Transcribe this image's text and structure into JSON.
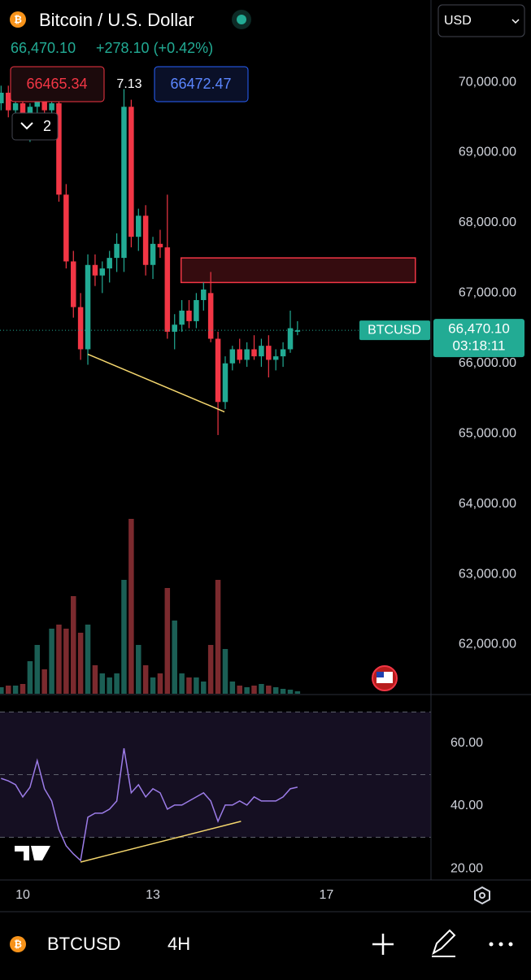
{
  "header": {
    "title": "Bitcoin / U.S. Dollar",
    "price": "66,470.10",
    "change": "+278.10 (+0.42%)",
    "bid": "66465.34",
    "spread": "7.13",
    "ask": "66472.47",
    "indicators_count": "2",
    "currency": "USD"
  },
  "chart_data": {
    "type": "candlestick",
    "symbol_label": "BTCUSD",
    "last_price_label": "66,470.10",
    "countdown": "03:18:11",
    "up_color": "#22ab94",
    "down_color": "#f23645",
    "x": [
      9.5,
      9.667,
      9.833,
      10,
      10.167,
      10.333,
      10.5,
      10.667,
      10.833,
      11,
      11.167,
      11.333,
      11.5,
      11.667,
      11.833,
      12,
      12.167,
      12.333,
      12.5,
      12.667,
      12.833,
      13,
      13.167,
      13.333,
      13.5,
      13.667,
      13.833,
      14,
      14.167,
      14.333,
      14.5,
      14.667,
      14.833,
      15,
      15.167,
      15.333,
      15.5,
      15.667,
      15.833,
      16,
      16.167,
      16.333
    ],
    "open": [
      69700,
      69850,
      69600,
      69700,
      69550,
      69650,
      69750,
      69600,
      69700,
      68400,
      67450,
      66800,
      66200,
      67400,
      67250,
      67350,
      67500,
      67500,
      69650,
      67800,
      68100,
      67400,
      67700,
      67650,
      66450,
      66550,
      66750,
      66600,
      66900,
      67000,
      66350,
      65450,
      66000,
      66200,
      66050,
      66200,
      66100,
      66250,
      66050,
      66100,
      66200,
      66450
    ],
    "high": [
      69950,
      69950,
      69750,
      69800,
      69700,
      69850,
      69900,
      69800,
      69750,
      68550,
      67600,
      67000,
      67550,
      67550,
      67450,
      67600,
      67850,
      69900,
      69750,
      68200,
      68250,
      67800,
      67900,
      68400,
      66700,
      66900,
      66900,
      67000,
      67150,
      67300,
      66450,
      66100,
      66250,
      66350,
      66300,
      66400,
      66350,
      66400,
      66200,
      66300,
      66750,
      66600
    ],
    "low": [
      69600,
      69500,
      69400,
      69450,
      69150,
      69500,
      69550,
      69400,
      68300,
      67350,
      66650,
      66050,
      65980,
      67100,
      67000,
      67150,
      67300,
      67300,
      67650,
      67600,
      67250,
      67200,
      67500,
      66350,
      66200,
      66450,
      66500,
      66500,
      66750,
      66300,
      64980,
      65350,
      65900,
      66000,
      65950,
      66050,
      65950,
      65800,
      65900,
      65950,
      66150,
      66400
    ],
    "close": [
      69850,
      69600,
      69700,
      69550,
      69650,
      69750,
      69600,
      69700,
      68400,
      67450,
      66800,
      66200,
      67400,
      67250,
      67350,
      67500,
      67700,
      69650,
      67800,
      68100,
      67400,
      67700,
      67650,
      66450,
      66550,
      66750,
      66600,
      66900,
      67050,
      66350,
      65450,
      66000,
      66200,
      66050,
      66200,
      66100,
      66250,
      66050,
      66100,
      66200,
      66500,
      66470.1
    ],
    "volume": [
      8,
      10,
      10,
      12,
      40,
      60,
      30,
      80,
      85,
      80,
      120,
      75,
      85,
      35,
      25,
      20,
      25,
      140,
      215,
      60,
      35,
      20,
      25,
      130,
      90,
      25,
      20,
      20,
      15,
      60,
      140,
      55,
      15,
      10,
      8,
      10,
      12,
      10,
      8,
      6,
      5,
      3
    ],
    "xlim": [
      9.475,
      19.41
    ],
    "xticks": [
      10,
      13,
      17
    ],
    "ylim": [
      61300,
      71169
    ],
    "yticks": [
      {
        "value": 70000,
        "label": "70,000.00"
      },
      {
        "value": 69000,
        "label": "69,000.00"
      },
      {
        "value": 68000,
        "label": "68,000.00"
      },
      {
        "value": 67000,
        "label": "67,000.00"
      },
      {
        "value": 66000,
        "label": "66,000.00"
      },
      {
        "value": 65000,
        "label": "65,000.00"
      },
      {
        "value": 64000,
        "label": "64,000.00"
      },
      {
        "value": 63000,
        "label": "63,000.00"
      },
      {
        "value": 62000,
        "label": "62,000.00"
      }
    ],
    "zone": {
      "top": 67500,
      "bottom": 67150,
      "x_start": 13.65,
      "x_end": 19.05
    },
    "trendline": {
      "x": [
        11.5,
        14.65
      ],
      "y": [
        66130,
        65310
      ]
    },
    "rsi": {
      "color": "#9c7ce8",
      "values": [
        48.8,
        48,
        46.8,
        42.9,
        46,
        54.5,
        45.5,
        41.6,
        32.5,
        27.3,
        24.7,
        22.6,
        36.4,
        37.7,
        37.7,
        39,
        41.6,
        58.4,
        44.2,
        46.8,
        42.9,
        45.5,
        44.2,
        39,
        40.3,
        40.3,
        41.6,
        42.9,
        44.2,
        41.6,
        35.1,
        40.3,
        40.3,
        41.6,
        40.3,
        42.9,
        41.6,
        41.6,
        41.6,
        42.9,
        45.5,
        46
      ],
      "ylim": [
        16.9,
        73.5
      ],
      "yticks": [
        {
          "value": 60,
          "label": "60.00"
        },
        {
          "value": 40,
          "label": "40.00"
        },
        {
          "value": 20,
          "label": "20.00"
        }
      ],
      "levels": [
        70,
        50,
        30
      ],
      "trendline": {
        "x": [
          11.333,
          15.031
        ],
        "y": [
          22.1,
          35.1
        ]
      }
    }
  },
  "footer": {
    "symbol": "BTCUSD",
    "interval": "4H"
  }
}
